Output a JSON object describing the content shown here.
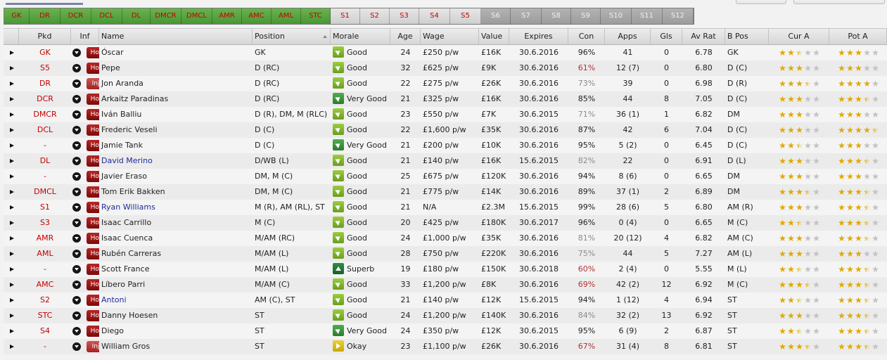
{
  "positions": [
    {
      "label": "GK",
      "state": "filled"
    },
    {
      "label": "DR",
      "state": "filled"
    },
    {
      "label": "DCR",
      "state": "filled"
    },
    {
      "label": "DCL",
      "state": "filled"
    },
    {
      "label": "DL",
      "state": "filled"
    },
    {
      "label": "DMCR",
      "state": "filled"
    },
    {
      "label": "DMCL",
      "state": "filled"
    },
    {
      "label": "AMR",
      "state": "filled"
    },
    {
      "label": "AMC",
      "state": "filled"
    },
    {
      "label": "AML",
      "state": "filled"
    },
    {
      "label": "STC",
      "state": "filled"
    },
    {
      "label": "S1",
      "state": "sub"
    },
    {
      "label": "S2",
      "state": "sub"
    },
    {
      "label": "S3",
      "state": "sub"
    },
    {
      "label": "S4",
      "state": "sub"
    },
    {
      "label": "S5",
      "state": "sub"
    },
    {
      "label": "S6",
      "state": "empty"
    },
    {
      "label": "S7",
      "state": "empty"
    },
    {
      "label": "S8",
      "state": "empty"
    },
    {
      "label": "S9",
      "state": "empty"
    },
    {
      "label": "S10",
      "state": "empty"
    },
    {
      "label": "S11",
      "state": "empty"
    },
    {
      "label": "S12",
      "state": "empty"
    }
  ],
  "columns": {
    "pkd": "Pkd",
    "inf": "Inf",
    "name": "Name",
    "position": "Position",
    "morale": "Morale",
    "age": "Age",
    "wage": "Wage",
    "value": "Value",
    "expires": "Expires",
    "con": "Con",
    "apps": "Apps",
    "gls": "Gls",
    "avrat": "Av Rat",
    "bpos": "B Pos",
    "cura": "Cur A",
    "pota": "Pot A"
  },
  "colors": {
    "pick_red": "#c40000",
    "link_blue": "#1d2b99",
    "star_gold": "#e0a800"
  },
  "players": [
    {
      "pkd": "GK",
      "inf": "Hol",
      "name": "Óscar",
      "name_style": "normal",
      "position": "GK",
      "morale": "Good",
      "morale_icon": "good",
      "age": "24",
      "wage": "£250 p/w",
      "value": "£16K",
      "expires": "30.6.2016",
      "con": "96%",
      "con_style": "normal",
      "apps": "41",
      "gls": "0",
      "avrat": "6.78",
      "bpos": "GK",
      "cura": 2.5,
      "pota": 3
    },
    {
      "pkd": "S5",
      "inf": "Hol",
      "name": "Pepe",
      "name_style": "normal",
      "position": "D (RC)",
      "morale": "Good",
      "morale_icon": "good",
      "age": "32",
      "wage": "£625 p/w",
      "value": "£9K",
      "expires": "30.6.2016",
      "con": "61%",
      "con_style": "red",
      "apps": "12 (7)",
      "gls": "0",
      "avrat": "6.80",
      "bpos": "D (C)",
      "cura": 3,
      "pota": 3
    },
    {
      "pkd": "DR",
      "inf": "Inj",
      "name": "Jon Aranda",
      "name_style": "normal",
      "position": "D (RC)",
      "morale": "Good",
      "morale_icon": "good",
      "age": "22",
      "wage": "£275 p/w",
      "value": "£26K",
      "expires": "30.6.2016",
      "con": "73%",
      "con_style": "grey",
      "apps": "39",
      "gls": "0",
      "avrat": "6.98",
      "bpos": "D (R)",
      "cura": 3.5,
      "pota": 4
    },
    {
      "pkd": "DCR",
      "inf": "Hol",
      "name": "Arkaitz Paradinas",
      "name_style": "normal",
      "position": "D (RC)",
      "morale": "Very Good",
      "morale_icon": "vgood",
      "age": "21",
      "wage": "£325 p/w",
      "value": "£16K",
      "expires": "30.6.2016",
      "con": "85%",
      "con_style": "normal",
      "apps": "44",
      "gls": "8",
      "avrat": "7.05",
      "bpos": "D (C)",
      "cura": 3,
      "pota": 3.5
    },
    {
      "pkd": "DMCR",
      "inf": "Hol",
      "name": "Iván Balliu",
      "name_style": "normal",
      "position": "D (R), DM, M (RLC)",
      "morale": "Good",
      "morale_icon": "good",
      "age": "23",
      "wage": "£550 p/w",
      "value": "£7K",
      "expires": "30.6.2015",
      "con": "71%",
      "con_style": "grey",
      "apps": "36 (1)",
      "gls": "1",
      "avrat": "6.82",
      "bpos": "DM",
      "cura": 3,
      "pota": 3
    },
    {
      "pkd": "DCL",
      "inf": "Hol",
      "name": "Frederic Veseli",
      "name_style": "normal",
      "position": "D (C)",
      "morale": "Good",
      "morale_icon": "good",
      "age": "22",
      "wage": "£1,600 p/w",
      "value": "£35K",
      "expires": "30.6.2016",
      "con": "87%",
      "con_style": "normal",
      "apps": "42",
      "gls": "6",
      "avrat": "7.04",
      "bpos": "D (C)",
      "cura": 3,
      "pota": 4.5
    },
    {
      "pkd": "-",
      "inf": "Hol",
      "name": "Jamie Tank",
      "name_style": "normal",
      "position": "D (C)",
      "morale": "Very Good",
      "morale_icon": "vgood",
      "age": "21",
      "wage": "£200 p/w",
      "value": "£10K",
      "expires": "30.6.2016",
      "con": "95%",
      "con_style": "normal",
      "apps": "5 (2)",
      "gls": "0",
      "avrat": "6.45",
      "bpos": "D (C)",
      "cura": 2.5,
      "pota": 3
    },
    {
      "pkd": "DL",
      "inf": "Hol",
      "name": "David Merino",
      "name_style": "blue",
      "position": "D/WB (L)",
      "morale": "Good",
      "morale_icon": "good",
      "age": "21",
      "wage": "£140 p/w",
      "value": "£16K",
      "expires": "15.6.2015",
      "con": "82%",
      "con_style": "grey",
      "apps": "22",
      "gls": "0",
      "avrat": "6.91",
      "bpos": "D (L)",
      "cura": 3,
      "pota": 3.5
    },
    {
      "pkd": "-",
      "inf": "Hol",
      "name": "Javier Eraso",
      "name_style": "normal",
      "position": "DM, M (C)",
      "morale": "Good",
      "morale_icon": "good",
      "age": "25",
      "wage": "£675 p/w",
      "value": "£120K",
      "expires": "30.6.2016",
      "con": "94%",
      "con_style": "normal",
      "apps": "8 (6)",
      "gls": "0",
      "avrat": "6.65",
      "bpos": "DM",
      "cura": 3,
      "pota": 3
    },
    {
      "pkd": "DMCL",
      "inf": "Hol",
      "name": "Tom Erik Bakken",
      "name_style": "normal",
      "position": "DM, M (C)",
      "morale": "Good",
      "morale_icon": "good",
      "age": "21",
      "wage": "£775 p/w",
      "value": "£14K",
      "expires": "30.6.2016",
      "con": "89%",
      "con_style": "normal",
      "apps": "37 (1)",
      "gls": "2",
      "avrat": "6.89",
      "bpos": "DM",
      "cura": 3.5,
      "pota": 3.5
    },
    {
      "pkd": "S1",
      "inf": "Hol",
      "name": "Ryan Williams",
      "name_style": "blue",
      "position": "M (R), AM (RL), ST",
      "morale": "Good",
      "morale_icon": "good",
      "age": "21",
      "wage": "N/A",
      "value": "£2.3M",
      "expires": "15.6.2015",
      "con": "99%",
      "con_style": "normal",
      "apps": "28 (6)",
      "gls": "5",
      "avrat": "6.80",
      "bpos": "AM (R)",
      "cura": 3,
      "pota": 3.5
    },
    {
      "pkd": "S3",
      "inf": "Hol",
      "name": "Isaac Carrillo",
      "name_style": "normal",
      "position": "M (C)",
      "morale": "Good",
      "morale_icon": "good",
      "age": "20",
      "wage": "£425 p/w",
      "value": "£180K",
      "expires": "30.6.2017",
      "con": "96%",
      "con_style": "normal",
      "apps": "0 (4)",
      "gls": "0",
      "avrat": "6.65",
      "bpos": "M (C)",
      "cura": 2.5,
      "pota": 3.5
    },
    {
      "pkd": "AMR",
      "inf": "Hol",
      "name": "Isaac Cuenca",
      "name_style": "normal",
      "position": "M/AM (RC)",
      "morale": "Good",
      "morale_icon": "good",
      "age": "24",
      "wage": "£1,000 p/w",
      "value": "£35K",
      "expires": "30.6.2016",
      "con": "81%",
      "con_style": "grey",
      "apps": "20 (12)",
      "gls": "4",
      "avrat": "6.82",
      "bpos": "AM (C)",
      "cura": 3,
      "pota": 3.5
    },
    {
      "pkd": "AML",
      "inf": "Hol",
      "name": "Rubén Carreras",
      "name_style": "normal",
      "position": "M/AM (L)",
      "morale": "Good",
      "morale_icon": "good",
      "age": "28",
      "wage": "£750 p/w",
      "value": "£220K",
      "expires": "30.6.2016",
      "con": "75%",
      "con_style": "grey",
      "apps": "44",
      "gls": "5",
      "avrat": "7.27",
      "bpos": "AM (L)",
      "cura": 3,
      "pota": 3
    },
    {
      "pkd": "-",
      "inf": "Hol",
      "name": "Scott France",
      "name_style": "normal",
      "position": "M/AM (L)",
      "morale": "Superb",
      "morale_icon": "superb",
      "age": "19",
      "wage": "£180 p/w",
      "value": "£150K",
      "expires": "30.6.2018",
      "con": "60%",
      "con_style": "red",
      "apps": "2 (4)",
      "gls": "0",
      "avrat": "5.55",
      "bpos": "M (L)",
      "cura": 2.5,
      "pota": 3.5
    },
    {
      "pkd": "AMC",
      "inf": "Hol",
      "name": "Líbero Parri",
      "name_style": "normal",
      "position": "M/AM (C)",
      "morale": "Good",
      "morale_icon": "good",
      "age": "33",
      "wage": "£1,200 p/w",
      "value": "£8K",
      "expires": "30.6.2016",
      "con": "69%",
      "con_style": "red",
      "apps": "42 (2)",
      "gls": "12",
      "avrat": "6.92",
      "bpos": "M (C)",
      "cura": 3.5,
      "pota": 3.5
    },
    {
      "pkd": "S2",
      "inf": "Hol",
      "name": "Antoni",
      "name_style": "blue",
      "position": "AM (C), ST",
      "morale": "Good",
      "morale_icon": "good",
      "age": "21",
      "wage": "£140 p/w",
      "value": "£12K",
      "expires": "15.6.2015",
      "con": "94%",
      "con_style": "normal",
      "apps": "1 (12)",
      "gls": "4",
      "avrat": "6.94",
      "bpos": "ST",
      "cura": 2.5,
      "pota": 3.5
    },
    {
      "pkd": "STC",
      "inf": "Hol",
      "name": "Danny Hoesen",
      "name_style": "normal",
      "position": "ST",
      "morale": "Good",
      "morale_icon": "good",
      "age": "24",
      "wage": "£1,200 p/w",
      "value": "£140K",
      "expires": "30.6.2016",
      "con": "84%",
      "con_style": "grey",
      "apps": "32 (2)",
      "gls": "13",
      "avrat": "6.92",
      "bpos": "ST",
      "cura": 3,
      "pota": 3.5
    },
    {
      "pkd": "S4",
      "inf": "Hol",
      "name": "Diego",
      "name_style": "normal",
      "position": "ST",
      "morale": "Very Good",
      "morale_icon": "vgood",
      "age": "24",
      "wage": "£350 p/w",
      "value": "£12K",
      "expires": "30.6.2015",
      "con": "95%",
      "con_style": "normal",
      "apps": "6 (9)",
      "gls": "2",
      "avrat": "6.87",
      "bpos": "ST",
      "cura": 2.5,
      "pota": 3.5
    },
    {
      "pkd": "-",
      "inf": "Inj",
      "name": "William Gros",
      "name_style": "normal",
      "position": "ST",
      "morale": "Okay",
      "morale_icon": "okay",
      "age": "23",
      "wage": "£1,100 p/w",
      "value": "£26K",
      "expires": "30.6.2016",
      "con": "67%",
      "con_style": "red",
      "apps": "31 (4)",
      "gls": "8",
      "avrat": "6.81",
      "bpos": "ST",
      "cura": 3.5,
      "pota": 3.5
    }
  ]
}
